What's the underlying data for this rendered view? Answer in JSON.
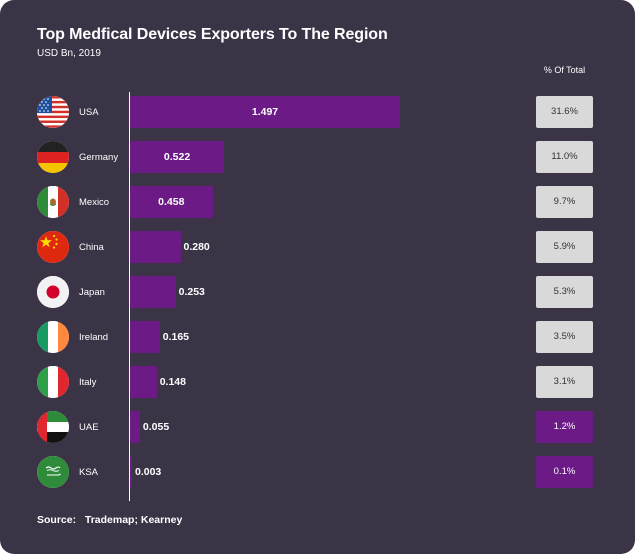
{
  "chart_data": {
    "type": "bar",
    "orientation": "horizontal",
    "title": "Top Medfical Devices Exporters To The Region",
    "subtitle": "USD Bn, 2019",
    "pct_header": "% Of Total",
    "source_label": "Source:",
    "source_text": "Trademap; Kearney",
    "xlim": [
      0,
      1.497
    ],
    "bar_color": "#6b1a86",
    "categories": [
      "USA",
      "Germany",
      "Mexico",
      "China",
      "Japan",
      "Ireland",
      "Italy",
      "UAE",
      "KSA"
    ],
    "values": [
      1.497,
      0.522,
      0.458,
      0.28,
      0.253,
      0.165,
      0.148,
      0.055,
      0.003
    ],
    "value_labels": [
      "1.497",
      "0.522",
      "0.458",
      "0.280",
      "0.253",
      "0.165",
      "0.148",
      "0.055",
      "0.003"
    ],
    "percent_labels": [
      "31.6%",
      "11.0%",
      "9.7%",
      "5.9%",
      "5.3%",
      "3.5%",
      "3.1%",
      "1.2%",
      "0.1%"
    ],
    "highlighted_percent_rows": [
      7,
      8
    ],
    "flags": [
      "usa-flag-icon",
      "germany-flag-icon",
      "mexico-flag-icon",
      "china-flag-icon",
      "japan-flag-icon",
      "ireland-flag-icon",
      "italy-flag-icon",
      "uae-flag-icon",
      "ksa-flag-icon"
    ]
  }
}
